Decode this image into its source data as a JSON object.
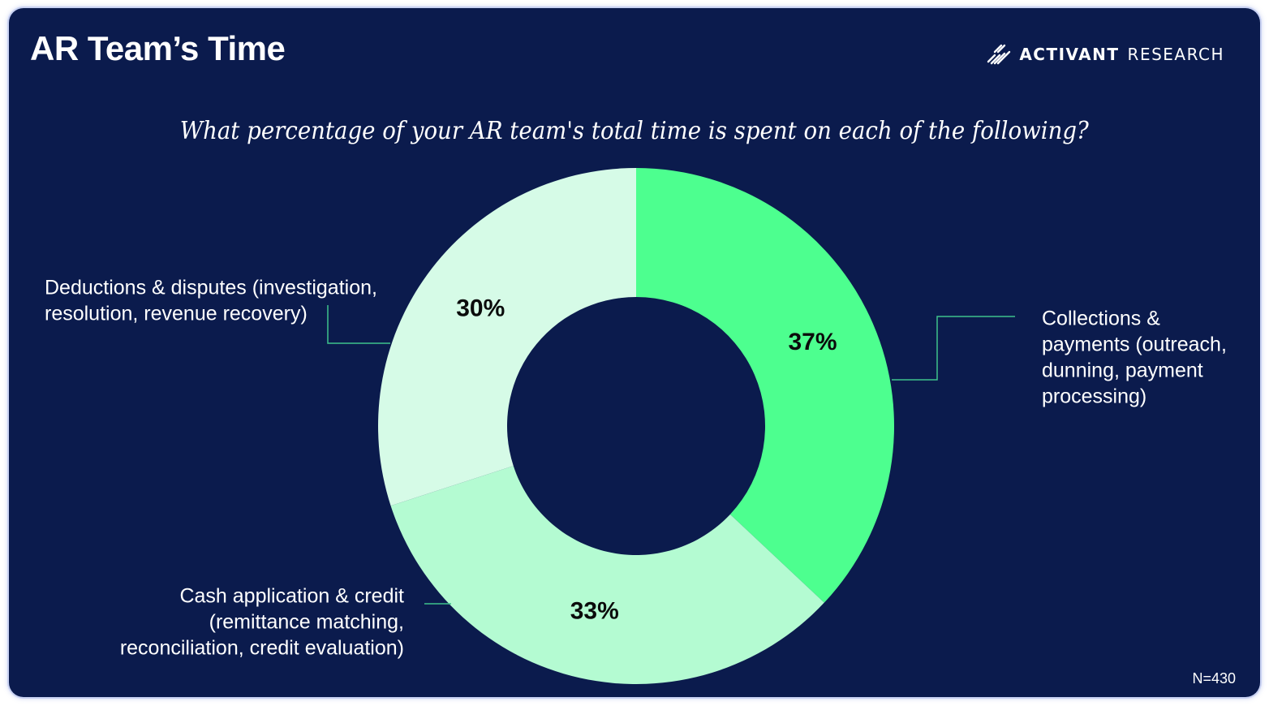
{
  "header": {
    "title": "AR Team’s Time",
    "brand_name_bold": "ACTIVANT",
    "brand_name_light": "RESEARCH",
    "brand_icon": "activant-slash-logo-icon"
  },
  "colors": {
    "background": "#0b1b4d",
    "collections": "#4dff8f",
    "cash_application": "#b4fbd2",
    "deductions": "#d6fbe7",
    "leader_line": "#3ec28c",
    "text": "#ffffff"
  },
  "chart_data": {
    "type": "pie",
    "variant": "donut",
    "title": "What percentage of your AR team's total time is spent on each of the following?",
    "categories": [
      "Collections & payments (outreach, dunning, payment processing)",
      "Cash application & credit (remittance matching, reconciliation, credit evaluation)",
      "Deductions & disputes (investigation, resolution, revenue recovery)"
    ],
    "values": [
      37,
      33,
      30
    ],
    "value_labels": [
      "37%",
      "33%",
      "30%"
    ],
    "label_lines": [
      [
        "Collections &",
        "payments (outreach,",
        "dunning, payment",
        "processing)"
      ],
      [
        "Cash application & credit",
        "(remittance matching,",
        "reconciliation, credit evaluation)"
      ],
      [
        "Deductions & disputes (investigation,",
        "resolution, revenue recovery)"
      ]
    ],
    "start_angle_deg": 0,
    "direction": "clockwise",
    "legend": "none (callout labels)"
  },
  "footnote": "N=430"
}
